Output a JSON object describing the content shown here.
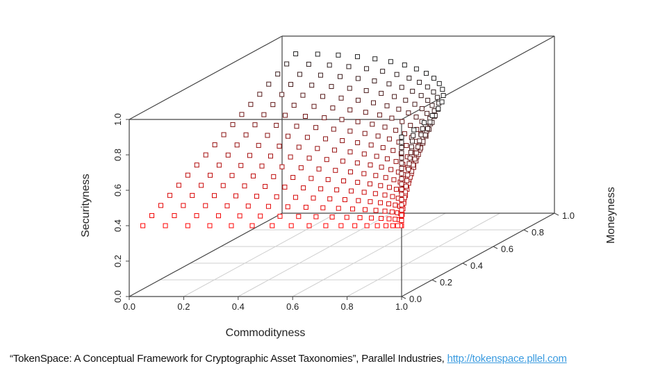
{
  "chart_data": {
    "type": "scatter3d",
    "xlabel": "Commodityness",
    "ylabel": "Moneyness",
    "zlabel": "Securityness",
    "xlim": [
      0,
      1
    ],
    "ylim": [
      0,
      1
    ],
    "zlim": [
      0,
      1
    ],
    "x_ticks": [
      "0.0",
      "0.2",
      "0.4",
      "0.6",
      "0.8",
      "1.0"
    ],
    "y_ticks": [
      "0.0",
      "0.2",
      "0.4",
      "0.6",
      "0.8",
      "1.0"
    ],
    "z_ticks": [
      "0.0",
      "0.2",
      "0.4",
      "0.6",
      "0.8",
      "1.0"
    ],
    "grid": true,
    "marker": "open-square",
    "color_low": "#ff0000",
    "color_high": "#222222",
    "surface": {
      "description_of_points": "quarter-disc surface: x = cos(a), y = r*sin(a), z = 0.4 + 0.5*r",
      "r_min": 0.0,
      "r_max": 1.0,
      "r_steps": 18,
      "a_steps": 19,
      "z_min": 0.4,
      "z_max": 0.9
    }
  },
  "caption": {
    "text": "“TokenSpace: A Conceptual Framework for Cryptographic Asset Taxonomies”, Parallel Industries, ",
    "link": "http://tokenspace.pllel.com"
  }
}
